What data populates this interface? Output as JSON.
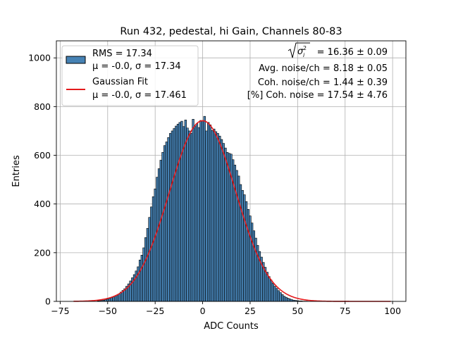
{
  "chart_data": {
    "type": "bar",
    "title": "Run 432, pedestal, hi Gain, Channels 80-83",
    "xlabel": "ADC Counts",
    "ylabel": "Entries",
    "xlim": [
      -77,
      107
    ],
    "ylim": [
      0,
      1070
    ],
    "xticks": [
      -75,
      -50,
      -25,
      0,
      25,
      50,
      75,
      100
    ],
    "xtick_labels": [
      "−75",
      "−50",
      "−25",
      "0",
      "25",
      "50",
      "75",
      "100"
    ],
    "yticks": [
      0,
      200,
      400,
      600,
      800,
      1000
    ],
    "ytick_labels": [
      "0",
      "200",
      "400",
      "600",
      "800",
      "1000"
    ],
    "grid": true,
    "bar_color": "#4682b4",
    "bar_edge_color": "#000000",
    "fit_color": "#e41a1c",
    "histogram": {
      "bin_width": 1,
      "bin_centers": [
        -55,
        -54,
        -53,
        -52,
        -51,
        -50,
        -49,
        -48,
        -47,
        -46,
        -45,
        -44,
        -43,
        -42,
        -41,
        -40,
        -39,
        -38,
        -37,
        -36,
        -35,
        -34,
        -33,
        -32,
        -31,
        -30,
        -29,
        -28,
        -27,
        -26,
        -25,
        -24,
        -23,
        -22,
        -21,
        -20,
        -19,
        -18,
        -17,
        -16,
        -15,
        -14,
        -13,
        -12,
        -11,
        -10,
        -9,
        -8,
        -7,
        -6,
        -5,
        -4,
        -3,
        -2,
        -1,
        0,
        1,
        2,
        3,
        4,
        5,
        6,
        7,
        8,
        9,
        10,
        11,
        12,
        13,
        14,
        15,
        16,
        17,
        18,
        19,
        20,
        21,
        22,
        23,
        24,
        25,
        26,
        27,
        28,
        29,
        30,
        31,
        32,
        33,
        34,
        35,
        36,
        37,
        38,
        39,
        40,
        41,
        42,
        43,
        44,
        45,
        46,
        47,
        48,
        49,
        50,
        51,
        52,
        53,
        54,
        55,
        56,
        57,
        58,
        59,
        60
      ],
      "counts": [
        2,
        3,
        4,
        5,
        7,
        9,
        12,
        15,
        18,
        22,
        26,
        31,
        38,
        45,
        52,
        62,
        72,
        84,
        97,
        110,
        125,
        142,
        170,
        190,
        220,
        262,
        300,
        345,
        388,
        430,
        462,
        510,
        545,
        580,
        612,
        640,
        655,
        673,
        690,
        700,
        710,
        720,
        728,
        735,
        740,
        718,
        745,
        712,
        700,
        690,
        748,
        718,
        730,
        714,
        743,
        742,
        760,
        700,
        735,
        725,
        702,
        708,
        697,
        690,
        679,
        665,
        649,
        630,
        612,
        608,
        605,
        582,
        560,
        538,
        515,
        480,
        456,
        438,
        410,
        378,
        351,
        322,
        290,
        260,
        230,
        205,
        182,
        160,
        140,
        120,
        102,
        88,
        74,
        62,
        53,
        44,
        36,
        28,
        21,
        17,
        13,
        10,
        7,
        5,
        4,
        3,
        2,
        2,
        1,
        1,
        1,
        0,
        0,
        0,
        0,
        0
      ]
    },
    "series": [
      {
        "name": "RMS",
        "legend_line1": "RMS = 17.34",
        "legend_line2": "μ = -0.0, σ = 17.34",
        "style": "histogram"
      },
      {
        "name": "Gaussian Fit",
        "legend_line1": "Gaussian Fit",
        "legend_line2": "μ = -0.0, σ = 17.461",
        "style": "line",
        "mu": -0.0,
        "sigma": 17.461,
        "amplitude": 742,
        "x_range": [
          -68,
          99
        ]
      }
    ],
    "legend_position": "upper-left",
    "annotations": {
      "sigma_value": "= 16.36 ± 0.09",
      "avg_noise": "Avg. noise/ch = 8.18 ± 0.05",
      "coh_noise": "Coh. noise/ch = 1.44 ± 0.39",
      "coh_noise_pct": "[%] Coh. noise = 17.54 ± 4.76"
    }
  }
}
